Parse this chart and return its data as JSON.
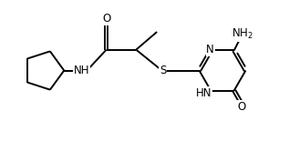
{
  "background_color": "#ffffff",
  "line_color": "#000000",
  "line_width": 1.4,
  "font_size": 8.5,
  "figsize": [
    3.28,
    1.55
  ],
  "dpi": 100,
  "xlim": [
    0,
    10
  ],
  "ylim": [
    0,
    4.7
  ]
}
